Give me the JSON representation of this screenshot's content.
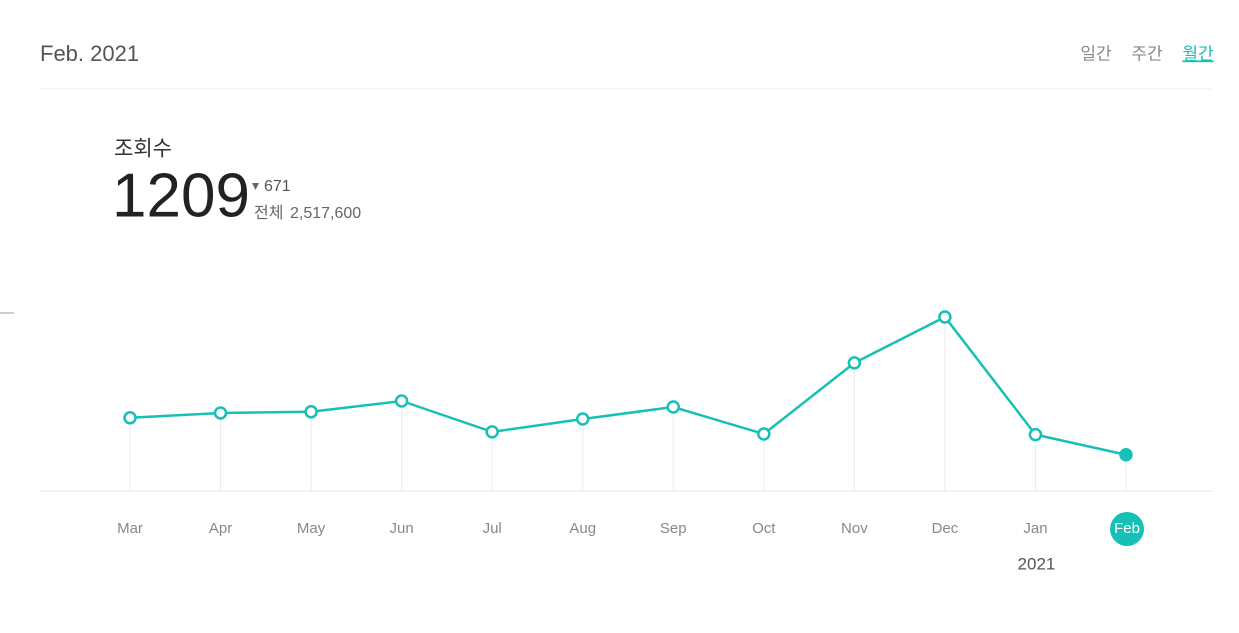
{
  "header": {
    "title": "Feb. 2021",
    "tabs": [
      "일간",
      "주간",
      "월간"
    ],
    "active_tab": 2
  },
  "stat": {
    "label": "조회수",
    "value": "1209",
    "change": "671",
    "total_label": "전체",
    "total": "2,517,600"
  },
  "chart_data": {
    "type": "line",
    "categories": [
      "Mar",
      "Apr",
      "May",
      "Jun",
      "Jul",
      "Aug",
      "Sep",
      "Oct",
      "Nov",
      "Dec",
      "Jan",
      "Feb"
    ],
    "values": [
      2440,
      2600,
      2640,
      3000,
      1970,
      2400,
      2800,
      1900,
      4270,
      5800,
      1880,
      1209
    ],
    "color": "#16c0b7",
    "year_label": "2021",
    "year_label_at": 10,
    "highlight": 11
  }
}
